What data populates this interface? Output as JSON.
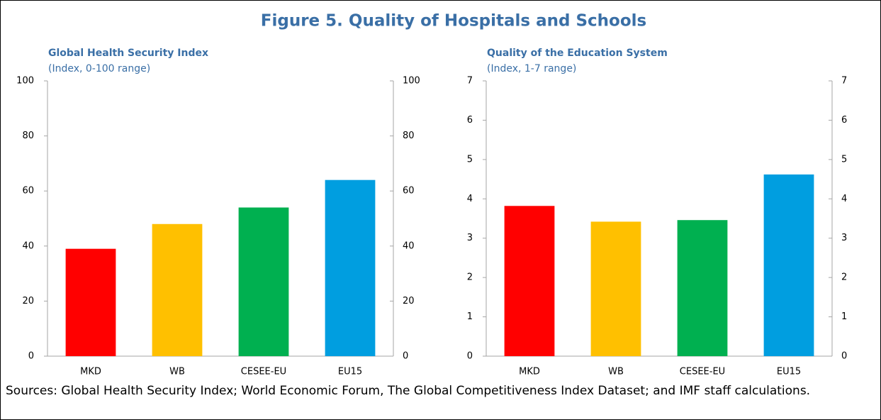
{
  "title": "Figure 5. Quality of Hospitals and Schools",
  "source": "Sources: Global Health Security Index; World Economic Forum, The Global Competitiveness Index Dataset; and IMF staff calculations.",
  "chart_data": [
    {
      "type": "bar",
      "title": "Global Health Security Index",
      "subtitle": "(Index, 0-100 range)",
      "categories": [
        "MKD",
        "WB",
        "CESEE-EU",
        "EU15"
      ],
      "values": [
        39,
        48,
        54,
        64
      ],
      "colors": [
        "#ff0000",
        "#ffc000",
        "#00b050",
        "#009ee0"
      ],
      "ylim": [
        0,
        100
      ],
      "yticks": [
        0,
        20,
        40,
        60,
        80,
        100
      ],
      "y2lim": [
        0,
        100
      ],
      "y2ticks": [
        0,
        20,
        40,
        60,
        80,
        100
      ],
      "grid": false
    },
    {
      "type": "bar",
      "title": "Quality of the Education System",
      "subtitle": "(Index, 1-7 range)",
      "categories": [
        "MKD",
        "WB",
        "CESEE-EU",
        "EU15"
      ],
      "values": [
        3.82,
        3.42,
        3.46,
        4.62
      ],
      "colors": [
        "#ff0000",
        "#ffc000",
        "#00b050",
        "#009ee0"
      ],
      "ylim": [
        0,
        7
      ],
      "yticks": [
        0,
        1,
        2,
        3,
        4,
        5,
        6,
        7
      ],
      "y2lim": [
        0,
        7
      ],
      "y2ticks": [
        0,
        1,
        2,
        3,
        4,
        5,
        6,
        7
      ],
      "grid": false
    }
  ]
}
